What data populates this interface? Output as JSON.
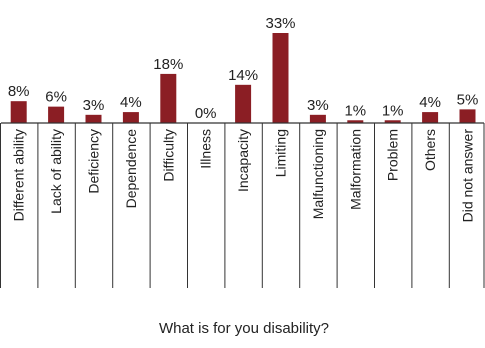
{
  "chart_data": {
    "type": "bar",
    "title": "What is for you disability?",
    "xlabel": "",
    "ylabel": "",
    "ylim": [
      0,
      33
    ],
    "value_suffix": "%",
    "categories": [
      "Different ability",
      "Lack of ability",
      "Deficiency",
      "Dependence",
      "Difficulty",
      "Illness",
      "Incapacity",
      "Limiting",
      "Malfunctioning",
      "Malformation",
      "Problem",
      "Others",
      "Did not answer"
    ],
    "values": [
      8,
      6,
      3,
      4,
      18,
      0,
      14,
      33,
      3,
      1,
      1,
      4,
      5
    ],
    "value_labels": [
      "8%",
      "6%",
      "3%",
      "4%",
      "18%",
      "0%",
      "14%",
      "33%",
      "3%",
      "1%",
      "1%",
      "4%",
      "5%"
    ],
    "bar_color": "#8b1e24",
    "axis_color": "#333333",
    "grid": false,
    "legend": "none"
  }
}
